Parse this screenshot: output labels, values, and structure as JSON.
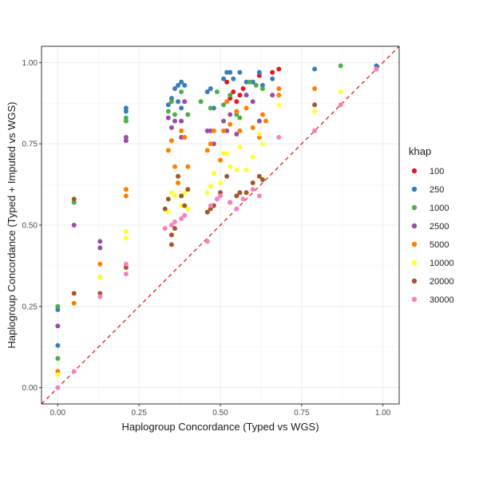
{
  "chart_data": {
    "type": "scatter",
    "title": "",
    "xlabel": "Haplogroup Concordance (Typed vs WGS)",
    "ylabel": "Haplogroup Concordance (Typed + Imputed vs WGS)",
    "xlim": [
      -0.05,
      1.05
    ],
    "ylim": [
      -0.05,
      1.05
    ],
    "xticks": [
      "0.00",
      "0.25",
      "0.50",
      "0.75",
      "1.00"
    ],
    "yticks": [
      "0.00",
      "0.25",
      "0.50",
      "0.75",
      "1.00"
    ],
    "grid": true,
    "legend_title": "khap",
    "legend_position": "right",
    "reference_line": {
      "slope": 1,
      "intercept": 0,
      "style": "dashed",
      "color": "#e41a1c"
    },
    "series": [
      {
        "name": "100",
        "color": "#e41a1c",
        "points": [
          [
            0.53,
            0.89
          ],
          [
            0.54,
            0.91
          ],
          [
            0.55,
            0.88
          ],
          [
            0.56,
            0.9
          ],
          [
            0.57,
            0.92
          ],
          [
            0.6,
            0.94
          ],
          [
            0.62,
            0.96
          ],
          [
            0.66,
            0.97
          ],
          [
            0.68,
            0.98
          ],
          [
            0.52,
            0.94
          ],
          [
            0.98,
            0.98
          ]
        ]
      },
      {
        "name": "250",
        "color": "#377eb8",
        "points": [
          [
            0.0,
            0.13
          ],
          [
            0.0,
            0.24
          ],
          [
            0.21,
            0.86
          ],
          [
            0.21,
            0.85
          ],
          [
            0.34,
            0.87
          ],
          [
            0.35,
            0.89
          ],
          [
            0.36,
            0.92
          ],
          [
            0.37,
            0.93
          ],
          [
            0.38,
            0.94
          ],
          [
            0.39,
            0.93
          ],
          [
            0.37,
            0.88
          ],
          [
            0.38,
            0.86
          ],
          [
            0.46,
            0.91
          ],
          [
            0.47,
            0.92
          ],
          [
            0.48,
            0.86
          ],
          [
            0.51,
            0.95
          ],
          [
            0.52,
            0.97
          ],
          [
            0.53,
            0.97
          ],
          [
            0.54,
            0.95
          ],
          [
            0.56,
            0.97
          ],
          [
            0.58,
            0.94
          ],
          [
            0.6,
            0.94
          ],
          [
            0.62,
            0.97
          ],
          [
            0.63,
            0.93
          ],
          [
            0.66,
            0.95
          ],
          [
            0.79,
            0.98
          ],
          [
            0.98,
            0.99
          ]
        ]
      },
      {
        "name": "1000",
        "color": "#4daf4a",
        "points": [
          [
            0.0,
            0.25
          ],
          [
            0.0,
            0.09
          ],
          [
            0.05,
            0.57
          ],
          [
            0.21,
            0.83
          ],
          [
            0.21,
            0.82
          ],
          [
            0.34,
            0.85
          ],
          [
            0.35,
            0.88
          ],
          [
            0.36,
            0.84
          ],
          [
            0.38,
            0.91
          ],
          [
            0.4,
            0.84
          ],
          [
            0.44,
            0.88
          ],
          [
            0.47,
            0.86
          ],
          [
            0.49,
            0.91
          ],
          [
            0.51,
            0.87
          ],
          [
            0.53,
            0.9
          ],
          [
            0.55,
            0.84
          ],
          [
            0.56,
            0.83
          ],
          [
            0.59,
            0.94
          ],
          [
            0.61,
            0.93
          ],
          [
            0.63,
            0.92
          ],
          [
            0.87,
            0.99
          ]
        ]
      },
      {
        "name": "2500",
        "color": "#984ea3",
        "points": [
          [
            0.0,
            0.19
          ],
          [
            0.05,
            0.5
          ],
          [
            0.13,
            0.45
          ],
          [
            0.13,
            0.43
          ],
          [
            0.21,
            0.77
          ],
          [
            0.21,
            0.76
          ],
          [
            0.34,
            0.83
          ],
          [
            0.35,
            0.8
          ],
          [
            0.36,
            0.82
          ],
          [
            0.38,
            0.82
          ],
          [
            0.38,
            0.77
          ],
          [
            0.39,
            0.88
          ],
          [
            0.46,
            0.79
          ],
          [
            0.47,
            0.79
          ],
          [
            0.48,
            0.75
          ],
          [
            0.51,
            0.82
          ],
          [
            0.52,
            0.79
          ],
          [
            0.53,
            0.84
          ],
          [
            0.55,
            0.78
          ],
          [
            0.58,
            0.9
          ],
          [
            0.6,
            0.88
          ],
          [
            0.62,
            0.82
          ],
          [
            0.66,
            0.9
          ]
        ]
      },
      {
        "name": "5000",
        "color": "#ff7f00",
        "points": [
          [
            0.0,
            0.05
          ],
          [
            0.05,
            0.26
          ],
          [
            0.13,
            0.38
          ],
          [
            0.13,
            0.34
          ],
          [
            0.21,
            0.61
          ],
          [
            0.21,
            0.59
          ],
          [
            0.34,
            0.73
          ],
          [
            0.35,
            0.76
          ],
          [
            0.36,
            0.68
          ],
          [
            0.37,
            0.63
          ],
          [
            0.38,
            0.79
          ],
          [
            0.39,
            0.77
          ],
          [
            0.4,
            0.68
          ],
          [
            0.46,
            0.73
          ],
          [
            0.47,
            0.75
          ],
          [
            0.48,
            0.79
          ],
          [
            0.5,
            0.7
          ],
          [
            0.51,
            0.79
          ],
          [
            0.52,
            0.88
          ],
          [
            0.53,
            0.81
          ],
          [
            0.55,
            0.85
          ],
          [
            0.56,
            0.79
          ],
          [
            0.58,
            0.86
          ],
          [
            0.6,
            0.8
          ],
          [
            0.62,
            0.77
          ],
          [
            0.63,
            0.84
          ],
          [
            0.64,
            0.82
          ],
          [
            0.68,
            0.9
          ],
          [
            0.68,
            0.92
          ],
          [
            0.79,
            0.92
          ]
        ]
      },
      {
        "name": "10000",
        "color": "#ffff33",
        "points": [
          [
            0.0,
            0.04
          ],
          [
            0.13,
            0.34
          ],
          [
            0.21,
            0.48
          ],
          [
            0.21,
            0.46
          ],
          [
            0.34,
            0.54
          ],
          [
            0.35,
            0.6
          ],
          [
            0.36,
            0.59
          ],
          [
            0.38,
            0.56
          ],
          [
            0.39,
            0.6
          ],
          [
            0.4,
            0.55
          ],
          [
            0.46,
            0.6
          ],
          [
            0.47,
            0.62
          ],
          [
            0.48,
            0.66
          ],
          [
            0.5,
            0.63
          ],
          [
            0.51,
            0.72
          ],
          [
            0.52,
            0.72
          ],
          [
            0.53,
            0.68
          ],
          [
            0.55,
            0.67
          ],
          [
            0.56,
            0.74
          ],
          [
            0.58,
            0.67
          ],
          [
            0.6,
            0.71
          ],
          [
            0.62,
            0.78
          ],
          [
            0.63,
            0.75
          ],
          [
            0.68,
            0.87
          ],
          [
            0.79,
            0.85
          ],
          [
            0.87,
            0.91
          ]
        ]
      },
      {
        "name": "20000",
        "color": "#a65628",
        "points": [
          [
            0.05,
            0.58
          ],
          [
            0.05,
            0.29
          ],
          [
            0.13,
            0.29
          ],
          [
            0.21,
            0.37
          ],
          [
            0.33,
            0.55
          ],
          [
            0.34,
            0.58
          ],
          [
            0.35,
            0.47
          ],
          [
            0.35,
            0.44
          ],
          [
            0.36,
            0.49
          ],
          [
            0.37,
            0.65
          ],
          [
            0.38,
            0.59
          ],
          [
            0.39,
            0.56
          ],
          [
            0.4,
            0.61
          ],
          [
            0.46,
            0.54
          ],
          [
            0.47,
            0.55
          ],
          [
            0.48,
            0.56
          ],
          [
            0.5,
            0.6
          ],
          [
            0.52,
            0.65
          ],
          [
            0.53,
            0.57
          ],
          [
            0.55,
            0.59
          ],
          [
            0.56,
            0.6
          ],
          [
            0.58,
            0.6
          ],
          [
            0.6,
            0.63
          ],
          [
            0.62,
            0.65
          ],
          [
            0.63,
            0.64
          ],
          [
            0.79,
            0.87
          ]
        ]
      },
      {
        "name": "30000",
        "color": "#f781bf",
        "points": [
          [
            0.0,
            0.0
          ],
          [
            0.05,
            0.05
          ],
          [
            0.13,
            0.28
          ],
          [
            0.21,
            0.38
          ],
          [
            0.21,
            0.35
          ],
          [
            0.33,
            0.49
          ],
          [
            0.35,
            0.5
          ],
          [
            0.36,
            0.51
          ],
          [
            0.38,
            0.52
          ],
          [
            0.39,
            0.53
          ],
          [
            0.46,
            0.45
          ],
          [
            0.47,
            0.56
          ],
          [
            0.49,
            0.58
          ],
          [
            0.5,
            0.59
          ],
          [
            0.53,
            0.57
          ],
          [
            0.55,
            0.55
          ],
          [
            0.57,
            0.58
          ],
          [
            0.6,
            0.61
          ],
          [
            0.62,
            0.59
          ],
          [
            0.68,
            0.77
          ],
          [
            0.79,
            0.79
          ],
          [
            0.87,
            0.87
          ],
          [
            0.98,
            0.98
          ]
        ]
      }
    ]
  }
}
